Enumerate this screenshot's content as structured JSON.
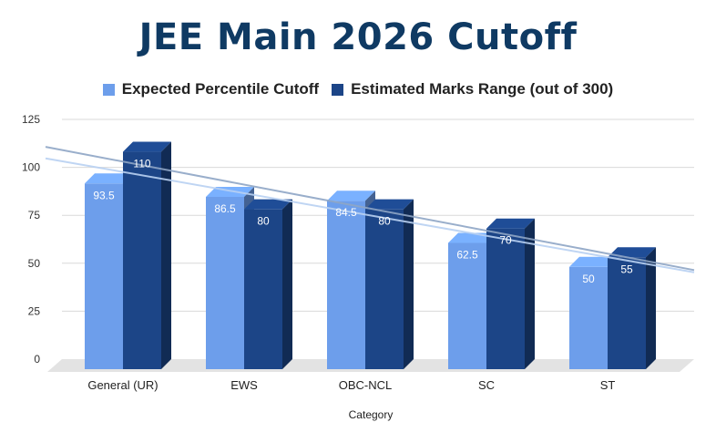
{
  "chart_data": {
    "type": "bar",
    "title": "JEE Main 2026 Cutoff",
    "xlabel": "Category",
    "ylabel": "",
    "ylim": [
      0,
      125
    ],
    "yticks": [
      0,
      25,
      50,
      75,
      100,
      125
    ],
    "grid": true,
    "legend_position": "top",
    "categories": [
      "General (UR)",
      "EWS",
      "OBC-NCL",
      "SC",
      "ST"
    ],
    "series": [
      {
        "name": "Expected Percentile Cutoff",
        "values": [
          93.5,
          86.5,
          84.5,
          62.5,
          50
        ],
        "labels": [
          "93.5",
          "86.5",
          "84.5",
          "62.5",
          "50"
        ],
        "color": "#6d9eeb",
        "trendline": true
      },
      {
        "name": "Estimated Marks Range (out of 300)",
        "values": [
          110,
          80,
          80,
          70,
          55
        ],
        "labels": [
          "110",
          "80",
          "80",
          "70",
          "55"
        ],
        "color": "#1c4587",
        "trendline": true
      }
    ]
  }
}
